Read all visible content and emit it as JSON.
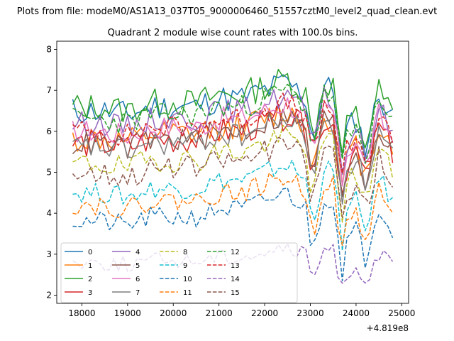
{
  "chart_data": {
    "type": "line",
    "suptitle": "Plots from file: modeM0/AS1A13_037T05_9000006460_51557cztM0_level2_quad_clean.evt",
    "title": "Quadrant 2 module wise count rates with 100.0s bins.",
    "xlabel": "",
    "ylabel": "",
    "x_offset_label": "+4.819e8",
    "xlim": [
      17450,
      25150
    ],
    "ylim": [
      1.8,
      8.2
    ],
    "xticks": [
      18000,
      19000,
      20000,
      21000,
      22000,
      23000,
      24000,
      25000
    ],
    "yticks": [
      2,
      3,
      4,
      5,
      6,
      7,
      8
    ],
    "grid": false,
    "legend": {
      "position": "lower-left",
      "columns": 5
    },
    "series": [
      {
        "name": "0",
        "color": "#1f77b4",
        "dash": "solid",
        "base": 6.5,
        "amp": 0.35,
        "seed": 11
      },
      {
        "name": "1",
        "color": "#ff7f0e",
        "dash": "solid",
        "base": 5.8,
        "amp": 0.35,
        "seed": 12
      },
      {
        "name": "2",
        "color": "#2ca02c",
        "dash": "solid",
        "base": 6.6,
        "amp": 0.35,
        "seed": 13
      },
      {
        "name": "3",
        "color": "#d62728",
        "dash": "solid",
        "base": 5.7,
        "amp": 0.35,
        "seed": 14
      },
      {
        "name": "4",
        "color": "#9467bd",
        "dash": "solid",
        "base": 6.2,
        "amp": 0.3,
        "seed": 15
      },
      {
        "name": "5",
        "color": "#8c564b",
        "dash": "solid",
        "base": 5.7,
        "amp": 0.3,
        "seed": 16
      },
      {
        "name": "6",
        "color": "#e377c2",
        "dash": "solid",
        "base": 6.0,
        "amp": 0.3,
        "seed": 17
      },
      {
        "name": "7",
        "color": "#7f7f7f",
        "dash": "solid",
        "base": 5.6,
        "amp": 0.3,
        "seed": 18
      },
      {
        "name": "8",
        "color": "#bcbd22",
        "dash": "dashed",
        "base": 5.2,
        "amp": 0.3,
        "seed": 19
      },
      {
        "name": "9",
        "color": "#17becf",
        "dash": "dashed",
        "base": 4.5,
        "amp": 0.25,
        "seed": 20
      },
      {
        "name": "10",
        "color": "#1f77b4",
        "dash": "dashed",
        "base": 3.8,
        "amp": 0.25,
        "seed": 21
      },
      {
        "name": "11",
        "color": "#ff7f0e",
        "dash": "dashed",
        "base": 4.2,
        "amp": 0.25,
        "seed": 22
      },
      {
        "name": "12",
        "color": "#2ca02c",
        "dash": "dashed",
        "base": 6.3,
        "amp": 0.3,
        "seed": 23
      },
      {
        "name": "13",
        "color": "#d62728",
        "dash": "dashed",
        "base": 6.0,
        "amp": 0.3,
        "seed": 24
      },
      {
        "name": "14",
        "color": "#9467bd",
        "dash": "dashed",
        "base": 2.8,
        "amp": 0.2,
        "seed": 25
      },
      {
        "name": "15",
        "color": "#8c564b",
        "dash": "dashed",
        "base": 5.0,
        "amp": 0.3,
        "seed": 26
      }
    ],
    "trend_x": [
      17800,
      18400,
      19000,
      19500,
      20000,
      20500,
      21000,
      21500,
      22000,
      22500,
      22900,
      23050,
      23300,
      23500,
      23700,
      23800,
      24000,
      24200,
      24500,
      24800,
      24900
    ],
    "trend_dy": [
      0.0,
      0.0,
      -0.1,
      0.1,
      0.1,
      0.1,
      0.3,
      0.3,
      0.5,
      0.7,
      0.3,
      -0.8,
      0.6,
      0.5,
      -1.2,
      -0.5,
      -0.2,
      -0.9,
      0.4,
      -0.2,
      -0.4
    ],
    "x_start": 17800,
    "x_step": 100,
    "n_points": 71
  }
}
